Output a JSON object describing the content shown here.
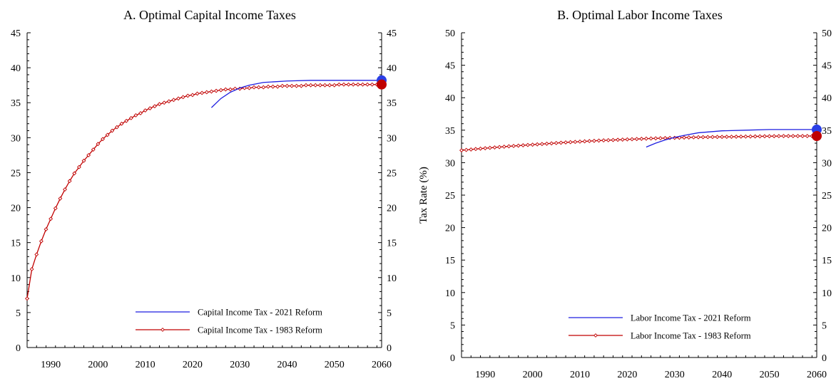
{
  "chart_data": [
    {
      "type": "line",
      "title": "A. Optimal Capital Income Taxes",
      "xlabel": "",
      "ylabel": "",
      "xlim": [
        1985,
        2060
      ],
      "ylim": [
        0,
        45
      ],
      "xticks": [
        1990,
        2000,
        2010,
        2020,
        2030,
        2040,
        2050,
        2060
      ],
      "yticks": [
        0,
        5,
        10,
        15,
        20,
        25,
        30,
        35,
        40,
        45
      ],
      "legend_position": "bottom-right",
      "grid": false,
      "series": [
        {
          "name": "Capital Income Tax - 2021 Reform",
          "color": "#1f1fe0",
          "marker": "none",
          "endpoint_marker": true,
          "endpoint_color": "#2a3fe6",
          "x": [
            2024,
            2026,
            2028,
            2030,
            2032,
            2035,
            2040,
            2045,
            2050,
            2055,
            2060
          ],
          "y": [
            34.3,
            35.6,
            36.5,
            37.1,
            37.5,
            37.9,
            38.1,
            38.2,
            38.2,
            38.2,
            38.2
          ]
        },
        {
          "name": "Capital Income Tax - 1983 Reform",
          "color": "#c00000",
          "marker": "diamond",
          "endpoint_marker": true,
          "endpoint_color": "#c00000",
          "x": [
            1985,
            1986,
            1987,
            1988,
            1989,
            1990,
            1991,
            1992,
            1993,
            1994,
            1995,
            1996,
            1997,
            1998,
            1999,
            2000,
            2001,
            2002,
            2003,
            2004,
            2005,
            2006,
            2007,
            2008,
            2009,
            2010,
            2011,
            2012,
            2013,
            2014,
            2015,
            2016,
            2017,
            2018,
            2019,
            2020,
            2021,
            2022,
            2023,
            2024,
            2025,
            2026,
            2027,
            2028,
            2029,
            2030,
            2031,
            2032,
            2033,
            2034,
            2035,
            2036,
            2037,
            2038,
            2039,
            2040,
            2041,
            2042,
            2043,
            2044,
            2045,
            2046,
            2047,
            2048,
            2049,
            2050,
            2051,
            2052,
            2053,
            2054,
            2055,
            2056,
            2057,
            2058,
            2059,
            2060
          ],
          "y": [
            7.0,
            11.2,
            13.3,
            15.2,
            16.9,
            18.4,
            19.9,
            21.3,
            22.6,
            23.8,
            24.9,
            25.8,
            26.7,
            27.5,
            28.3,
            29.1,
            29.8,
            30.4,
            31.0,
            31.5,
            32.0,
            32.4,
            32.8,
            33.2,
            33.5,
            33.9,
            34.2,
            34.5,
            34.8,
            35.0,
            35.2,
            35.4,
            35.6,
            35.8,
            36.0,
            36.1,
            36.3,
            36.4,
            36.5,
            36.6,
            36.7,
            36.8,
            36.9,
            36.9,
            37.0,
            37.0,
            37.1,
            37.1,
            37.2,
            37.2,
            37.2,
            37.3,
            37.3,
            37.3,
            37.4,
            37.4,
            37.4,
            37.4,
            37.4,
            37.5,
            37.5,
            37.5,
            37.5,
            37.5,
            37.5,
            37.5,
            37.6,
            37.6,
            37.6,
            37.6,
            37.6,
            37.6,
            37.6,
            37.6,
            37.6,
            37.6
          ]
        }
      ]
    },
    {
      "type": "line",
      "title": "B. Optimal Labor Income Taxes",
      "xlabel": "",
      "ylabel": "Tax Rate  (%)",
      "xlim": [
        1985,
        2060
      ],
      "ylim": [
        0,
        50
      ],
      "xticks": [
        1990,
        2000,
        2010,
        2020,
        2030,
        2040,
        2050,
        2060
      ],
      "yticks": [
        0,
        5,
        10,
        15,
        20,
        25,
        30,
        35,
        40,
        45,
        50
      ],
      "legend_position": "bottom-right",
      "grid": false,
      "series": [
        {
          "name": "Labor Income Tax - 2021 Reform",
          "color": "#1f1fe0",
          "marker": "none",
          "endpoint_marker": true,
          "endpoint_color": "#2a3fe6",
          "x": [
            2024,
            2026,
            2028,
            2030,
            2032,
            2035,
            2040,
            2045,
            2050,
            2055,
            2060
          ],
          "y": [
            32.4,
            33.0,
            33.5,
            33.9,
            34.2,
            34.6,
            34.9,
            35.0,
            35.1,
            35.1,
            35.1
          ]
        },
        {
          "name": "Labor Income Tax - 1983 Reform",
          "color": "#c00000",
          "marker": "diamond",
          "endpoint_marker": true,
          "endpoint_color": "#c00000",
          "x": [
            1985,
            1986,
            1987,
            1988,
            1989,
            1990,
            1991,
            1992,
            1993,
            1994,
            1995,
            1996,
            1997,
            1998,
            1999,
            2000,
            2001,
            2002,
            2003,
            2004,
            2005,
            2006,
            2007,
            2008,
            2009,
            2010,
            2011,
            2012,
            2013,
            2014,
            2015,
            2016,
            2017,
            2018,
            2019,
            2020,
            2021,
            2022,
            2023,
            2024,
            2025,
            2026,
            2027,
            2028,
            2029,
            2030,
            2031,
            2032,
            2033,
            2034,
            2035,
            2036,
            2037,
            2038,
            2039,
            2040,
            2041,
            2042,
            2043,
            2044,
            2045,
            2046,
            2047,
            2048,
            2049,
            2050,
            2051,
            2052,
            2053,
            2054,
            2055,
            2056,
            2057,
            2058,
            2059,
            2060
          ],
          "y": [
            31.9,
            31.96,
            32.03,
            32.1,
            32.16,
            32.22,
            32.28,
            32.34,
            32.4,
            32.46,
            32.52,
            32.57,
            32.62,
            32.67,
            32.72,
            32.77,
            32.82,
            32.87,
            32.92,
            32.97,
            33.02,
            33.07,
            33.12,
            33.16,
            33.2,
            33.24,
            33.28,
            33.32,
            33.36,
            33.4,
            33.43,
            33.46,
            33.49,
            33.52,
            33.55,
            33.58,
            33.61,
            33.64,
            33.67,
            33.7,
            33.72,
            33.74,
            33.76,
            33.78,
            33.8,
            33.82,
            33.84,
            33.86,
            33.88,
            33.9,
            33.92,
            33.93,
            33.94,
            33.95,
            33.96,
            33.97,
            33.98,
            33.99,
            34.0,
            34.01,
            34.02,
            34.03,
            34.04,
            34.05,
            34.06,
            34.07,
            34.08,
            34.09,
            34.1,
            34.1,
            34.1,
            34.1,
            34.1,
            34.1,
            34.1,
            34.1
          ]
        }
      ]
    }
  ]
}
